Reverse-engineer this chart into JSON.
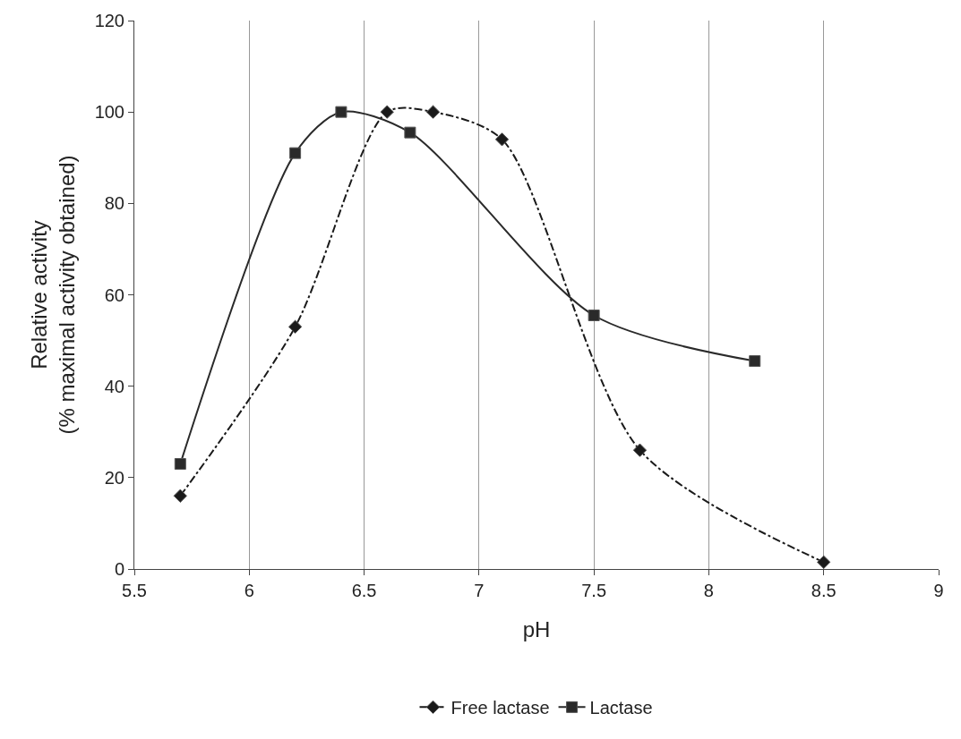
{
  "chart_data": {
    "type": "line",
    "xlabel": "pH",
    "ylabel": "Relative activity\n(% maximal activity obtained)",
    "xlim": [
      5.5,
      9
    ],
    "xticks": [
      5.5,
      6,
      6.5,
      7,
      7.5,
      8,
      8.5,
      9
    ],
    "ylim": [
      0,
      120
    ],
    "yticks": [
      0,
      20,
      40,
      60,
      80,
      100,
      120
    ],
    "grid": "x",
    "legend": "bottom",
    "series": [
      {
        "name": "Free lactase",
        "color": "#1a1a1a",
        "marker": "diamond",
        "line_style": "dashed",
        "x": [
          5.7,
          6.2,
          6.6,
          6.8,
          7.1,
          7.7,
          8.5
        ],
        "values": [
          16,
          53,
          100,
          100,
          94,
          26,
          1.5
        ]
      },
      {
        "name": "Lactase",
        "color": "#2a2a2a",
        "marker": "square",
        "line_style": "solid",
        "x": [
          5.7,
          6.2,
          6.4,
          6.7,
          7.5,
          8.2
        ],
        "values": [
          23,
          91,
          100,
          95.5,
          55.5,
          45.5
        ]
      }
    ]
  }
}
